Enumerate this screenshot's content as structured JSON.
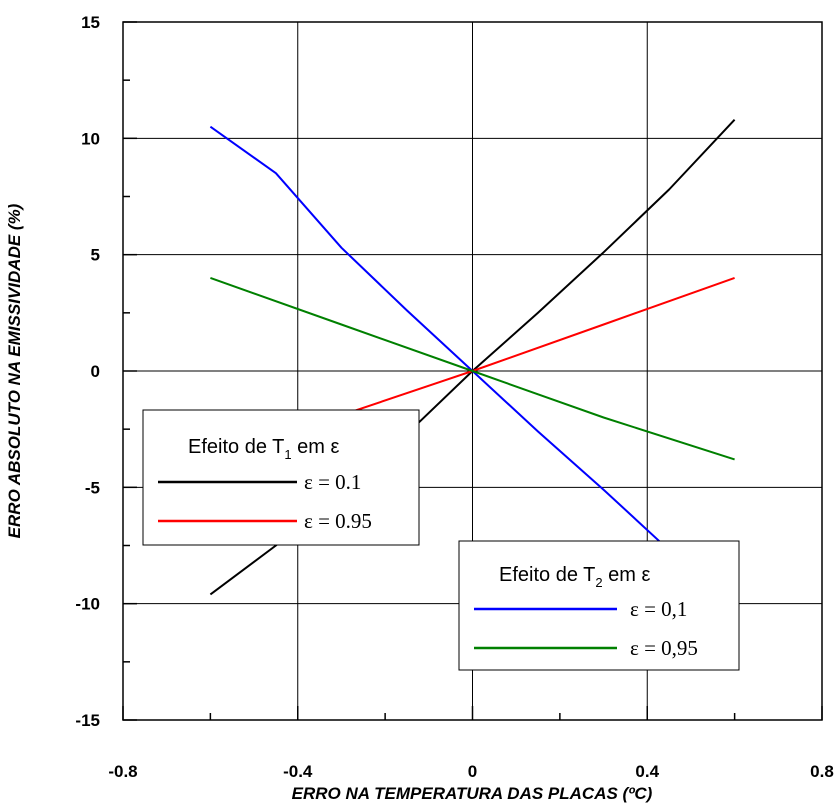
{
  "chart_data": {
    "type": "line",
    "xlabel": "ERRO NA TEMPERATURA DAS PLACAS (ºC)",
    "ylabel": "ERRO ABSOLUTO NA EMISSIVIDADE (%)",
    "xlim": [
      -0.8,
      0.8
    ],
    "ylim": [
      -15,
      15
    ],
    "grid": true,
    "x_ticks": [
      "-0.8",
      "-0.4",
      "0",
      "0.4",
      "0.8"
    ],
    "y_ticks": [
      "15",
      "10",
      "5",
      "0",
      "-5",
      "-10",
      "-15"
    ],
    "x_tick_values": [
      -0.8,
      -0.4,
      0,
      0.4,
      0.8
    ],
    "y_tick_values": [
      15,
      10,
      5,
      0,
      -5,
      -10,
      -15
    ],
    "legends": [
      {
        "title_main": "Efeito de T",
        "title_sub": "1",
        "title_tail": " em ε",
        "placement": "left-middle",
        "entries": [
          {
            "label": "ε = 0.1",
            "color": "#000000"
          },
          {
            "label": "ε = 0.95",
            "color": "#ff0000"
          }
        ]
      },
      {
        "title_main": "Efeito de T",
        "title_sub": "2",
        "title_tail": " em ε",
        "placement": "bottom-right",
        "entries": [
          {
            "label": "ε = 0,1",
            "color": "#0000ff"
          },
          {
            "label": "ε = 0,95",
            "color": "#008000"
          }
        ]
      }
    ],
    "series": [
      {
        "color": "#000000",
        "x": [
          -0.6,
          -0.45,
          -0.3,
          -0.15,
          0,
          0.15,
          0.3,
          0.45,
          0.6
        ],
        "y": [
          -9.6,
          -7.5,
          -5.2,
          -2.7,
          0,
          2.5,
          5.1,
          7.8,
          10.8
        ]
      },
      {
        "color": "#ff0000",
        "x": [
          -0.6,
          -0.3,
          0,
          0.3,
          0.6
        ],
        "y": [
          -4.0,
          -1.9,
          0,
          2.0,
          4.0
        ]
      },
      {
        "color": "#0000ff",
        "x": [
          -0.6,
          -0.45,
          -0.3,
          -0.15,
          0,
          0.15,
          0.3,
          0.45,
          0.6
        ],
        "y": [
          10.5,
          8.5,
          5.3,
          2.6,
          0,
          -2.6,
          -5.1,
          -7.7,
          -10.2
        ]
      },
      {
        "color": "#008000",
        "x": [
          -0.6,
          -0.3,
          0,
          0.15,
          0.3,
          0.6
        ],
        "y": [
          4.0,
          2.0,
          0,
          -1.0,
          -2.0,
          -3.8
        ]
      }
    ]
  }
}
